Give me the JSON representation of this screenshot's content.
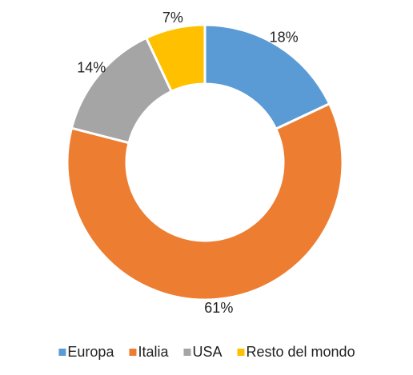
{
  "chart_data": {
    "type": "donut",
    "categories": [
      "Europa",
      "Italia",
      "USA",
      "Resto del mondo"
    ],
    "values": [
      18,
      61,
      14,
      7
    ],
    "value_labels": [
      "18%",
      "61%",
      "14%",
      "7%"
    ],
    "colors": [
      "#5b9bd5",
      "#ed7d31",
      "#a5a5a5",
      "#ffc000"
    ],
    "legend": "bottom"
  }
}
